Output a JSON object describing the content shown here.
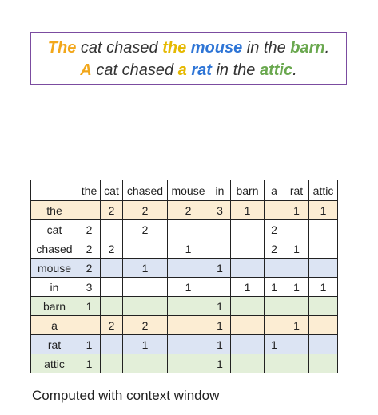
{
  "sentences": [
    [
      {
        "text": "The",
        "color": "#f2a71b"
      },
      {
        "text": " cat chased ",
        "color": "#333333"
      },
      {
        "text": "the",
        "color": "#e5b800"
      },
      {
        "text": " ",
        "color": "#333333"
      },
      {
        "text": "mouse",
        "color": "#2e75d6"
      },
      {
        "text": " in the ",
        "color": "#333333"
      },
      {
        "text": "barn",
        "color": "#6aa84f"
      },
      {
        "text": ".",
        "color": "#333333"
      }
    ],
    [
      {
        "text": "A",
        "color": "#f2a71b"
      },
      {
        "text": " cat chased ",
        "color": "#333333"
      },
      {
        "text": "a",
        "color": "#e5b800"
      },
      {
        "text": " ",
        "color": "#333333"
      },
      {
        "text": "rat",
        "color": "#2e75d6"
      },
      {
        "text": " in the ",
        "color": "#333333"
      },
      {
        "text": "attic",
        "color": "#6aa84f"
      },
      {
        "text": ".",
        "color": "#333333"
      }
    ]
  ],
  "table": {
    "columns": [
      "the",
      "cat",
      "chased",
      "mouse",
      "in",
      "barn",
      "a",
      "rat",
      "attic"
    ],
    "rows": [
      {
        "label": "the",
        "color": "#fcedd3",
        "cells": [
          null,
          2,
          2,
          2,
          3,
          1,
          null,
          1,
          1
        ]
      },
      {
        "label": "cat",
        "color": "#ffffff",
        "cells": [
          2,
          null,
          2,
          null,
          null,
          null,
          2,
          null,
          null
        ]
      },
      {
        "label": "chased",
        "color": "#ffffff",
        "cells": [
          2,
          2,
          null,
          1,
          null,
          null,
          2,
          1,
          null
        ]
      },
      {
        "label": "mouse",
        "color": "#dce4f3",
        "cells": [
          2,
          null,
          1,
          null,
          1,
          null,
          null,
          null,
          null
        ]
      },
      {
        "label": "in",
        "color": "#ffffff",
        "cells": [
          3,
          null,
          null,
          1,
          null,
          1,
          1,
          1,
          1
        ]
      },
      {
        "label": "barn",
        "color": "#e3efd9",
        "cells": [
          1,
          null,
          null,
          null,
          1,
          null,
          null,
          null,
          null
        ]
      },
      {
        "label": "a",
        "color": "#fcedd3",
        "cells": [
          null,
          2,
          2,
          null,
          1,
          null,
          null,
          1,
          null
        ]
      },
      {
        "label": "rat",
        "color": "#dce4f3",
        "cells": [
          1,
          null,
          1,
          null,
          1,
          null,
          1,
          null,
          null
        ]
      },
      {
        "label": "attic",
        "color": "#e3efd9",
        "cells": [
          1,
          null,
          null,
          null,
          1,
          null,
          null,
          null,
          null
        ]
      }
    ]
  },
  "footer": "Computed with context window"
}
